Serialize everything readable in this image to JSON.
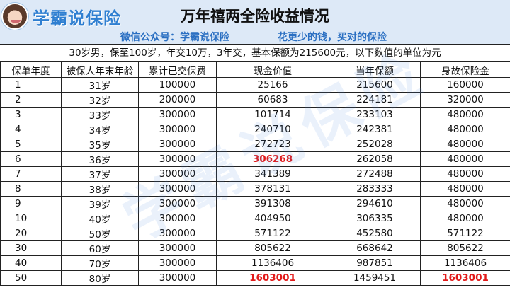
{
  "header": {
    "logo_text": "学霸说保险",
    "title": "万年禧两全险收益情况",
    "wechat": "微信公众号：学霸说保险",
    "slogan": "花更少的钱，买对的保险"
  },
  "description": "30岁男，保至100岁，年交10万，3年交，基本保额为215600元，以下数值的单位为元",
  "table": {
    "columns": [
      "保单年度",
      "被保人年末年龄",
      "累计已交保费",
      "现金价值",
      "当年保额",
      "身故保险金"
    ],
    "rows": [
      [
        "1",
        "31岁",
        "100000",
        "25166",
        "215600",
        "160000"
      ],
      [
        "2",
        "32岁",
        "200000",
        "60683",
        "224181",
        "320000"
      ],
      [
        "3",
        "33岁",
        "300000",
        "101714",
        "233103",
        "480000"
      ],
      [
        "4",
        "34岁",
        "300000",
        "240710",
        "242381",
        "480000"
      ],
      [
        "5",
        "35岁",
        "300000",
        "272723",
        "252028",
        "480000"
      ],
      [
        "6",
        "36岁",
        "300000",
        "306268",
        "262058",
        "480000"
      ],
      [
        "7",
        "37岁",
        "300000",
        "341389",
        "272488",
        "480000"
      ],
      [
        "8",
        "38岁",
        "300000",
        "378131",
        "283333",
        "480000"
      ],
      [
        "9",
        "39岁",
        "300000",
        "391308",
        "294610",
        "480000"
      ],
      [
        "10",
        "40岁",
        "300000",
        "404950",
        "306335",
        "480000"
      ],
      [
        "20",
        "50岁",
        "300000",
        "571122",
        "452580",
        "571122"
      ],
      [
        "30",
        "60岁",
        "300000",
        "805622",
        "668642",
        "805622"
      ],
      [
        "40",
        "70岁",
        "300000",
        "1136406",
        "987851",
        "1136406"
      ],
      [
        "50",
        "80岁",
        "300000",
        "1603001",
        "1459451",
        "1603001"
      ]
    ],
    "highlight_color": "#e21a1a"
  },
  "watermark": "学霸说保险",
  "colors": {
    "header_bg": "#dde9f7",
    "accent_blue": "#2a6fc2"
  },
  "icons": {
    "logo": "avatar-icon"
  }
}
